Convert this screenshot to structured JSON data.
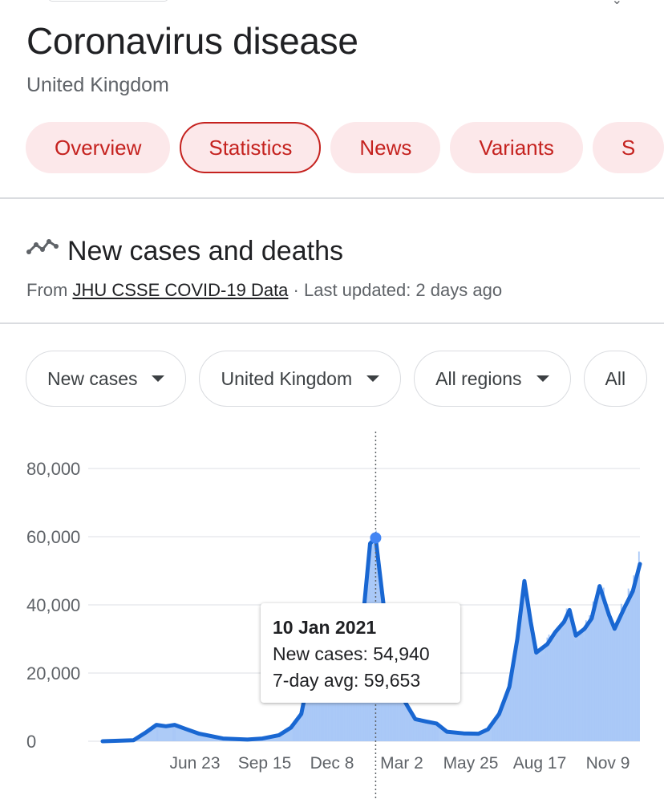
{
  "header": {
    "title": "Coronavirus disease",
    "subtitle": "United Kingdom"
  },
  "tabs": [
    {
      "label": "Overview",
      "active": false
    },
    {
      "label": "Statistics",
      "active": true
    },
    {
      "label": "News",
      "active": false
    },
    {
      "label": "Variants",
      "active": false
    },
    {
      "label": "S",
      "active": false
    }
  ],
  "section": {
    "title": "New cases and deaths",
    "icon": "trend-line-icon",
    "source_prefix": "From",
    "source_link": "JHU CSSE COVID-19 Data",
    "updated": "· Last updated: 2 days ago"
  },
  "filters": [
    {
      "label": "New cases"
    },
    {
      "label": "United Kingdom"
    },
    {
      "label": "All regions"
    },
    {
      "label": "All"
    }
  ],
  "colors": {
    "accent_red": "#c5221f",
    "tab_bg": "#fce8ea",
    "line_blue": "#1967d2",
    "area_blue": "#a9c8f7"
  },
  "tooltip": {
    "date": "10 Jan 2021",
    "new_cases_label": "New cases: 54,940",
    "avg_label": "7-day avg: 59,653"
  },
  "chart_data": {
    "type": "area",
    "series": [
      {
        "name": "New cases",
        "style": "bars"
      },
      {
        "name": "7-day avg",
        "style": "line"
      }
    ],
    "y_ticks": [
      "0",
      "20,000",
      "40,000",
      "60,000",
      "80,000"
    ],
    "ylim": [
      0,
      80000
    ],
    "x_ticks": [
      "Jun 23",
      "Sep 15",
      "Dec 8",
      "Mar 2",
      "May 25",
      "Aug 17",
      "Nov 9"
    ],
    "x_start": "2020-01-31",
    "x_end": "2021-12-10",
    "highlight": {
      "date": "2021-01-10",
      "value": 59653
    },
    "avg_points": [
      [
        "2020-01-31",
        0
      ],
      [
        "2020-03-10",
        300
      ],
      [
        "2020-03-25",
        2500
      ],
      [
        "2020-04-08",
        4800
      ],
      [
        "2020-04-20",
        4400
      ],
      [
        "2020-05-01",
        4800
      ],
      [
        "2020-05-15",
        3600
      ],
      [
        "2020-06-01",
        2200
      ],
      [
        "2020-07-01",
        800
      ],
      [
        "2020-08-01",
        500
      ],
      [
        "2020-08-20",
        800
      ],
      [
        "2020-09-10",
        1800
      ],
      [
        "2020-09-25",
        4000
      ],
      [
        "2020-10-08",
        8000
      ],
      [
        "2020-10-15",
        16000
      ],
      [
        "2020-10-25",
        21000
      ],
      [
        "2020-11-05",
        23000
      ],
      [
        "2020-11-20",
        20000
      ],
      [
        "2020-12-01",
        16000
      ],
      [
        "2020-12-15",
        21000
      ],
      [
        "2020-12-25",
        36000
      ],
      [
        "2021-01-03",
        58000
      ],
      [
        "2021-01-10",
        59653
      ],
      [
        "2021-01-20",
        40000
      ],
      [
        "2021-01-30",
        22000
      ],
      [
        "2021-02-10",
        14000
      ],
      [
        "2021-02-20",
        10000
      ],
      [
        "2021-03-01",
        6500
      ],
      [
        "2021-03-15",
        5800
      ],
      [
        "2021-03-28",
        5200
      ],
      [
        "2021-04-10",
        2800
      ],
      [
        "2021-05-01",
        2300
      ],
      [
        "2021-05-20",
        2200
      ],
      [
        "2021-06-01",
        3500
      ],
      [
        "2021-06-15",
        8000
      ],
      [
        "2021-06-28",
        16000
      ],
      [
        "2021-07-08",
        30000
      ],
      [
        "2021-07-17",
        47000
      ],
      [
        "2021-07-25",
        35000
      ],
      [
        "2021-08-01",
        26000
      ],
      [
        "2021-08-15",
        28500
      ],
      [
        "2021-08-25",
        32000
      ],
      [
        "2021-09-05",
        35000
      ],
      [
        "2021-09-12",
        38500
      ],
      [
        "2021-09-20",
        31000
      ],
      [
        "2021-10-01",
        33000
      ],
      [
        "2021-10-10",
        36000
      ],
      [
        "2021-10-20",
        45500
      ],
      [
        "2021-11-01",
        37000
      ],
      [
        "2021-11-08",
        33000
      ],
      [
        "2021-11-20",
        39000
      ],
      [
        "2021-12-01",
        44000
      ],
      [
        "2021-12-10",
        52000
      ]
    ],
    "grid": true
  }
}
